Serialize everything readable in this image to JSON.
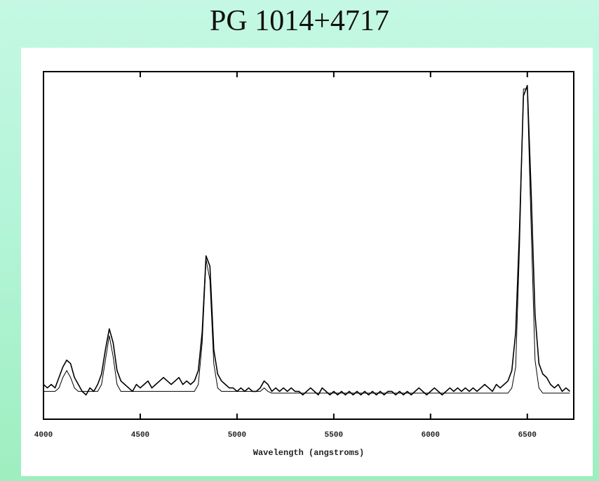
{
  "chart_data": {
    "type": "line",
    "title": "PG 1014+4717",
    "xlabel": "Wavelength (angstroms)",
    "x": [
      4000,
      4020,
      4040,
      4060,
      4080,
      4100,
      4120,
      4140,
      4160,
      4180,
      4200,
      4220,
      4240,
      4260,
      4280,
      4300,
      4320,
      4340,
      4360,
      4380,
      4400,
      4420,
      4440,
      4460,
      4480,
      4500,
      4520,
      4540,
      4560,
      4580,
      4600,
      4620,
      4640,
      4660,
      4680,
      4700,
      4720,
      4740,
      4760,
      4780,
      4800,
      4820,
      4840,
      4860,
      4880,
      4900,
      4920,
      4940,
      4960,
      4980,
      5000,
      5020,
      5040,
      5060,
      5080,
      5100,
      5120,
      5140,
      5160,
      5180,
      5200,
      5220,
      5240,
      5260,
      5280,
      5300,
      5320,
      5340,
      5360,
      5380,
      5400,
      5420,
      5440,
      5460,
      5480,
      5500,
      5520,
      5540,
      5560,
      5580,
      5600,
      5620,
      5640,
      5660,
      5680,
      5700,
      5720,
      5740,
      5760,
      5780,
      5800,
      5820,
      5840,
      5860,
      5880,
      5900,
      5920,
      5940,
      5960,
      5980,
      6000,
      6020,
      6040,
      6060,
      6080,
      6100,
      6120,
      6140,
      6160,
      6180,
      6200,
      6220,
      6240,
      6260,
      6280,
      6300,
      6320,
      6340,
      6360,
      6380,
      6400,
      6420,
      6440,
      6460,
      6480,
      6500,
      6520,
      6540,
      6560,
      6580,
      6600,
      6620,
      6640,
      6660,
      6680,
      6700,
      6720
    ],
    "series": [
      {
        "color": "#000000",
        "values": [
          0.1,
          0.09,
          0.1,
          0.09,
          0.12,
          0.15,
          0.17,
          0.16,
          0.12,
          0.1,
          0.08,
          0.07,
          0.09,
          0.08,
          0.1,
          0.13,
          0.2,
          0.26,
          0.22,
          0.14,
          0.11,
          0.1,
          0.09,
          0.08,
          0.1,
          0.09,
          0.1,
          0.11,
          0.09,
          0.1,
          0.11,
          0.12,
          0.11,
          0.1,
          0.11,
          0.12,
          0.1,
          0.11,
          0.1,
          0.11,
          0.14,
          0.25,
          0.47,
          0.44,
          0.2,
          0.13,
          0.11,
          0.1,
          0.09,
          0.09,
          0.08,
          0.09,
          0.08,
          0.09,
          0.08,
          0.08,
          0.09,
          0.11,
          0.1,
          0.08,
          0.09,
          0.08,
          0.09,
          0.08,
          0.09,
          0.08,
          0.08,
          0.07,
          0.08,
          0.09,
          0.08,
          0.07,
          0.09,
          0.08,
          0.07,
          0.08,
          0.07,
          0.08,
          0.07,
          0.08,
          0.07,
          0.08,
          0.07,
          0.08,
          0.07,
          0.08,
          0.07,
          0.08,
          0.07,
          0.08,
          0.08,
          0.07,
          0.08,
          0.07,
          0.08,
          0.07,
          0.08,
          0.09,
          0.08,
          0.07,
          0.08,
          0.09,
          0.08,
          0.07,
          0.08,
          0.09,
          0.08,
          0.09,
          0.08,
          0.09,
          0.08,
          0.09,
          0.08,
          0.09,
          0.1,
          0.09,
          0.08,
          0.1,
          0.09,
          0.1,
          0.11,
          0.14,
          0.25,
          0.55,
          0.93,
          0.96,
          0.65,
          0.3,
          0.16,
          0.13,
          0.12,
          0.1,
          0.09,
          0.1,
          0.08,
          0.09,
          0.08
        ]
      },
      {
        "color": "#000000",
        "values": [
          0.08,
          0.08,
          0.08,
          0.08,
          0.09,
          0.12,
          0.14,
          0.12,
          0.09,
          0.08,
          0.08,
          0.08,
          0.08,
          0.08,
          0.08,
          0.1,
          0.17,
          0.24,
          0.18,
          0.1,
          0.08,
          0.08,
          0.08,
          0.08,
          0.08,
          0.08,
          0.08,
          0.08,
          0.08,
          0.08,
          0.08,
          0.08,
          0.08,
          0.08,
          0.08,
          0.08,
          0.08,
          0.08,
          0.08,
          0.08,
          0.1,
          0.22,
          0.46,
          0.4,
          0.16,
          0.09,
          0.08,
          0.08,
          0.08,
          0.08,
          0.08,
          0.08,
          0.08,
          0.08,
          0.08,
          0.08,
          0.08,
          0.09,
          0.08,
          0.075,
          0.075,
          0.075,
          0.075,
          0.075,
          0.075,
          0.075,
          0.075,
          0.075,
          0.075,
          0.075,
          0.075,
          0.075,
          0.075,
          0.075,
          0.075,
          0.075,
          0.075,
          0.075,
          0.075,
          0.075,
          0.075,
          0.075,
          0.075,
          0.075,
          0.075,
          0.075,
          0.075,
          0.075,
          0.075,
          0.075,
          0.075,
          0.075,
          0.075,
          0.075,
          0.075,
          0.075,
          0.075,
          0.075,
          0.075,
          0.075,
          0.075,
          0.075,
          0.075,
          0.075,
          0.075,
          0.075,
          0.075,
          0.075,
          0.075,
          0.075,
          0.075,
          0.075,
          0.075,
          0.075,
          0.075,
          0.075,
          0.075,
          0.075,
          0.075,
          0.075,
          0.075,
          0.09,
          0.15,
          0.5,
          0.95,
          0.95,
          0.55,
          0.17,
          0.09,
          0.075,
          0.075,
          0.075,
          0.075,
          0.075,
          0.075,
          0.075,
          0.075
        ]
      }
    ],
    "xlim": [
      4000,
      6740
    ],
    "xticks": [
      4000,
      4500,
      5000,
      5500,
      6000,
      6500
    ],
    "ylim": [
      0,
      1
    ]
  }
}
